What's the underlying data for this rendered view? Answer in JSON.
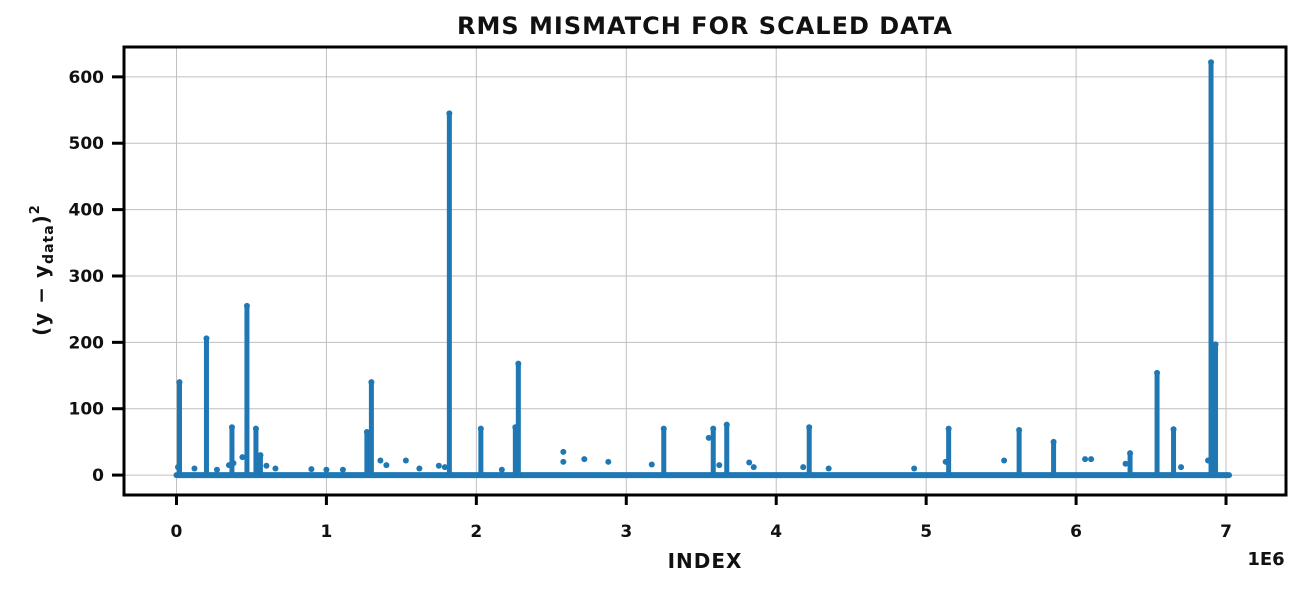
{
  "chart_data": {
    "type": "scatter",
    "title": "RMS MISMATCH FOR SCALED DATA",
    "xlabel": "INDEX",
    "ylabel_main": "(y − y",
    "ylabel_sub": "data",
    "ylabel_end": ")",
    "ylabel_sup": "2",
    "x_offset_label": "1E6",
    "xlim": [
      -0.35,
      7.4
    ],
    "ylim": [
      -30,
      645
    ],
    "x_ticks": [
      0,
      1,
      2,
      3,
      4,
      5,
      6,
      7
    ],
    "x_tick_labels": [
      "0",
      "1",
      "2",
      "3",
      "4",
      "5",
      "6",
      "7"
    ],
    "y_ticks": [
      0,
      100,
      200,
      300,
      400,
      500,
      600
    ],
    "y_tick_labels": [
      "0",
      "100",
      "200",
      "300",
      "400",
      "500",
      "600"
    ],
    "grid": true,
    "baseline": {
      "x_start": 0,
      "x_end": 7.02,
      "y": 0
    },
    "series": [
      {
        "color": "#1f77b4",
        "spikes": [
          [
            0.02,
            140
          ],
          [
            0.2,
            206
          ],
          [
            0.37,
            72
          ],
          [
            0.47,
            255
          ],
          [
            0.53,
            70
          ],
          [
            0.56,
            30
          ],
          [
            1.27,
            65
          ],
          [
            1.3,
            140
          ],
          [
            1.82,
            545
          ],
          [
            2.03,
            70
          ],
          [
            2.26,
            72
          ],
          [
            2.28,
            168
          ],
          [
            3.25,
            70
          ],
          [
            3.58,
            70
          ],
          [
            3.67,
            76
          ],
          [
            4.22,
            72
          ],
          [
            5.15,
            70
          ],
          [
            5.62,
            68
          ],
          [
            5.85,
            50
          ],
          [
            6.36,
            33
          ],
          [
            6.54,
            154
          ],
          [
            6.65,
            69
          ],
          [
            6.9,
            622
          ],
          [
            6.93,
            197
          ]
        ],
        "points": [
          [
            0.01,
            12
          ],
          [
            0.12,
            10
          ],
          [
            0.27,
            8
          ],
          [
            0.35,
            15
          ],
          [
            0.38,
            18
          ],
          [
            0.44,
            27
          ],
          [
            0.6,
            14
          ],
          [
            0.66,
            10
          ],
          [
            0.9,
            9
          ],
          [
            1.0,
            8
          ],
          [
            1.11,
            8
          ],
          [
            1.36,
            22
          ],
          [
            1.4,
            15
          ],
          [
            1.53,
            22
          ],
          [
            1.62,
            10
          ],
          [
            1.75,
            14
          ],
          [
            1.79,
            12
          ],
          [
            2.17,
            8
          ],
          [
            2.58,
            35
          ],
          [
            2.58,
            20
          ],
          [
            2.72,
            24
          ],
          [
            2.88,
            20
          ],
          [
            3.17,
            16
          ],
          [
            3.55,
            56
          ],
          [
            3.62,
            15
          ],
          [
            3.82,
            19
          ],
          [
            3.85,
            12
          ],
          [
            4.18,
            12
          ],
          [
            4.35,
            10
          ],
          [
            4.92,
            10
          ],
          [
            5.13,
            20
          ],
          [
            5.52,
            22
          ],
          [
            6.06,
            24
          ],
          [
            6.1,
            24
          ],
          [
            6.33,
            17
          ],
          [
            6.7,
            12
          ],
          [
            6.88,
            22
          ]
        ]
      }
    ]
  }
}
